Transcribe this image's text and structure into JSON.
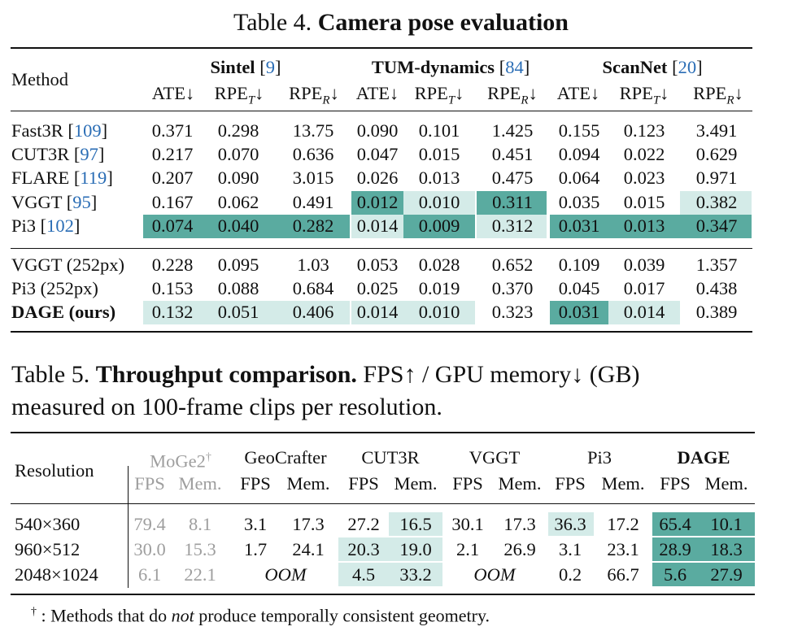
{
  "table4": {
    "caption_prefix": "Table 4.",
    "caption_title": "Camera pose evaluation",
    "method_header": "Method",
    "groups": [
      {
        "name": "Sintel",
        "cite": "9"
      },
      {
        "name": "TUM-dynamics",
        "cite": "84"
      },
      {
        "name": "ScanNet",
        "cite": "20"
      }
    ],
    "metric_ate": "ATE",
    "metric_rpe": "RPE",
    "sub_t": "T",
    "sub_r": "R",
    "down_arrow": "↓",
    "rows_top": [
      {
        "method": "Fast3R",
        "cite": "109",
        "values": [
          "0.371",
          "0.298",
          "13.75",
          "0.090",
          "0.101",
          "1.425",
          "0.155",
          "0.123",
          "3.491"
        ]
      },
      {
        "method": "CUT3R",
        "cite": "97",
        "values": [
          "0.217",
          "0.070",
          "0.636",
          "0.047",
          "0.015",
          "0.451",
          "0.094",
          "0.022",
          "0.629"
        ]
      },
      {
        "method": "FLARE",
        "cite": "119",
        "values": [
          "0.207",
          "0.090",
          "3.015",
          "0.026",
          "0.013",
          "0.475",
          "0.064",
          "0.023",
          "0.971"
        ]
      },
      {
        "method": "VGGT",
        "cite": "95",
        "values": [
          "0.167",
          "0.062",
          "0.491",
          "0.012",
          "0.010",
          "0.311",
          "0.035",
          "0.015",
          "0.382"
        ]
      },
      {
        "method": "Pi3",
        "cite": "102",
        "values": [
          "0.074",
          "0.040",
          "0.282",
          "0.014",
          "0.009",
          "0.312",
          "0.031",
          "0.013",
          "0.347"
        ]
      }
    ],
    "rows_bottom": [
      {
        "method": "VGGT (252px)",
        "values": [
          "0.228",
          "0.095",
          "1.03",
          "0.053",
          "0.028",
          "0.652",
          "0.109",
          "0.039",
          "1.357"
        ]
      },
      {
        "method": "Pi3 (252px)",
        "values": [
          "0.153",
          "0.088",
          "0.684",
          "0.025",
          "0.019",
          "0.370",
          "0.045",
          "0.017",
          "0.438"
        ]
      },
      {
        "method": "DAGE (ours)",
        "values": [
          "0.132",
          "0.051",
          "0.406",
          "0.014",
          "0.010",
          "0.323",
          "0.031",
          "0.014",
          "0.389"
        ]
      }
    ]
  },
  "table5": {
    "caption_prefix": "Table 5.",
    "caption_title": "Throughput comparison.",
    "caption_rest": "FPS↑ / GPU memory↓ (GB)",
    "caption_line2": "measured on 100-frame clips per resolution.",
    "resolution_header": "Resolution",
    "methods": [
      "MoGe2",
      "GeoCrafter",
      "CUT3R",
      "VGGT",
      "Pi3",
      "DAGE"
    ],
    "dagger": "†",
    "fps_label": "FPS",
    "mem_label": "Mem.",
    "rows": [
      {
        "res": "540×360",
        "values": [
          "79.4",
          "8.1",
          "3.1",
          "17.3",
          "27.2",
          "16.5",
          "30.1",
          "17.3",
          "36.3",
          "17.2",
          "65.4",
          "10.1"
        ]
      },
      {
        "res": "960×512",
        "values": [
          "30.0",
          "15.3",
          "1.7",
          "24.1",
          "20.3",
          "19.0",
          "2.1",
          "26.9",
          "3.1",
          "23.1",
          "28.9",
          "18.3"
        ]
      },
      {
        "res": "2048×1024",
        "values": [
          "6.1",
          "22.1",
          "",
          "",
          "4.5",
          "33.2",
          "",
          "",
          "0.2",
          "66.7",
          "5.6",
          "27.9"
        ]
      }
    ],
    "oom": "OOM",
    "footnote_mark": "†",
    "footnote_pre": ": Methods that do",
    "footnote_em": "not",
    "footnote_post": "produce temporally consistent geometry."
  }
}
